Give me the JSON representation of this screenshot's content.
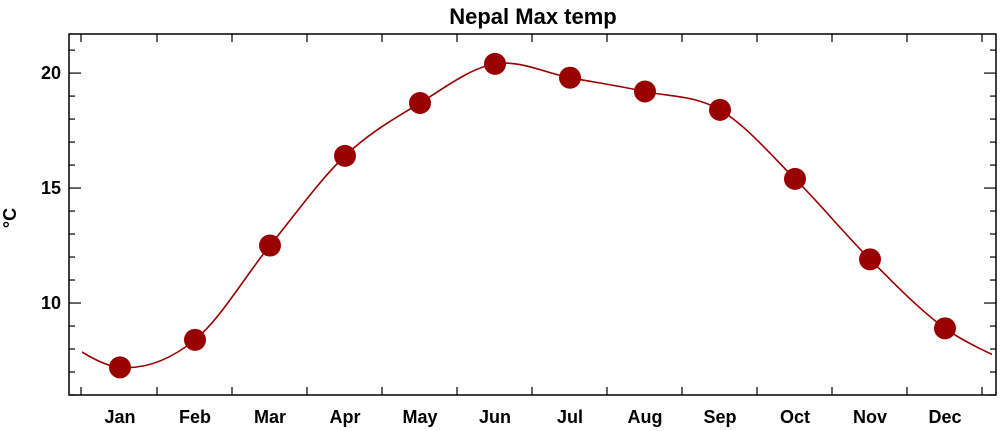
{
  "chart_data": {
    "type": "line",
    "title": "Nepal Max temp",
    "xlabel": "",
    "ylabel": "°C",
    "categories": [
      "Jan",
      "Feb",
      "Mar",
      "Apr",
      "May",
      "Jun",
      "Jul",
      "Aug",
      "Sep",
      "Oct",
      "Nov",
      "Dec"
    ],
    "series": [
      {
        "values": [
          7.2,
          8.4,
          12.5,
          16.4,
          18.7,
          20.4,
          19.8,
          19.2,
          18.4,
          15.4,
          11.9,
          8.9
        ]
      }
    ],
    "yticks": [
      10,
      15,
      20
    ],
    "ylim": [
      6.0,
      21.7
    ],
    "grid": false,
    "line_color": "#990000",
    "marker_color": "#990000",
    "marker": "filled-circle",
    "curve": "smooth"
  }
}
